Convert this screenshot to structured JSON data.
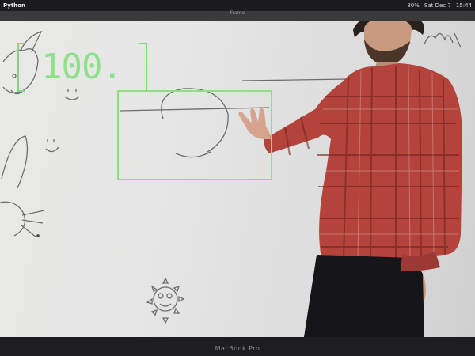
{
  "menubar": {
    "app_name": "Python",
    "status": [
      "80%",
      "Sat Dec 7",
      "15:44"
    ]
  },
  "window": {
    "subtitle": "Frame"
  },
  "overlay": {
    "counter": "100.",
    "box_color": "#8ee07f"
  },
  "laptop": {
    "brand": "MacBook Pro"
  }
}
